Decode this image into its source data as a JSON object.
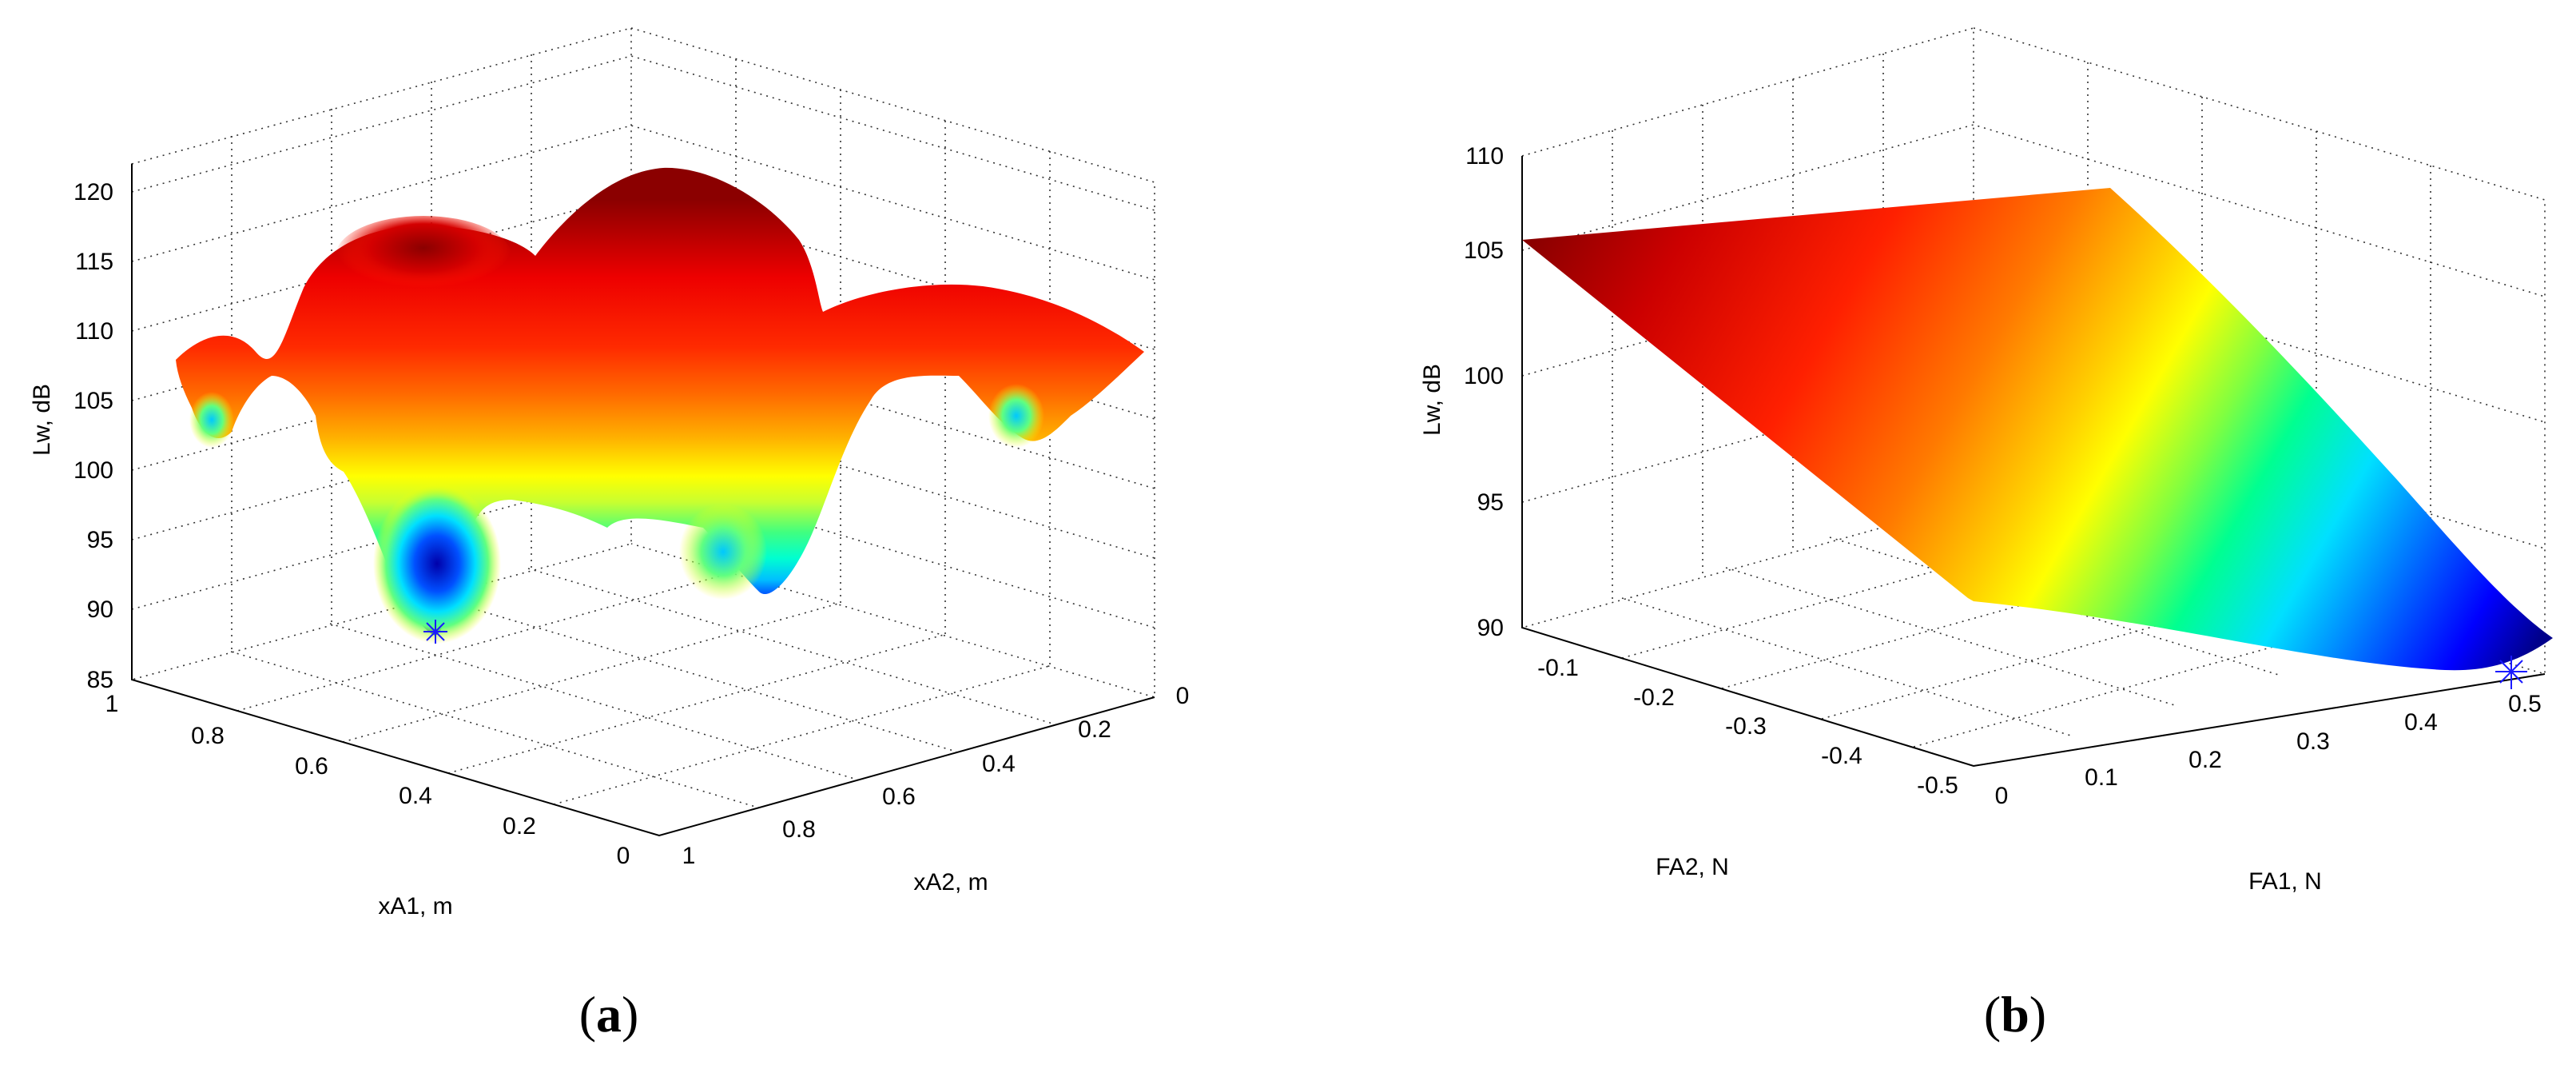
{
  "chart_data": [
    {
      "type": "surface",
      "panel_label": "a",
      "xlabel": "xA1, m",
      "ylabel": "xA2, m",
      "zlabel": "Lw, dB",
      "xlim": [
        0,
        1
      ],
      "ylim": [
        0,
        1
      ],
      "zlim": [
        85,
        120
      ],
      "x_ticks": [
        "0",
        "0.2",
        "0.4",
        "0.6",
        "0.8",
        "1"
      ],
      "y_ticks": [
        "0",
        "0.2",
        "0.4",
        "0.6",
        "0.8",
        "1"
      ],
      "z_ticks": [
        "85",
        "90",
        "95",
        "100",
        "105",
        "110",
        "115",
        "120"
      ],
      "grid": true,
      "colormap": "jet",
      "marker": {
        "symbol": "asterisk",
        "x": 0.5,
        "y": 0.75,
        "z": 88
      },
      "surface_points": {
        "x": [
          0,
          0.25,
          0.5,
          0.75,
          1
        ],
        "y": [
          0,
          0.25,
          0.5,
          0.75,
          1
        ],
        "z": [
          [
            108,
            110,
            107,
            112,
            106
          ],
          [
            103,
            116,
            104,
            110,
            102
          ],
          [
            110,
            108,
            100,
            115,
            107
          ],
          [
            102,
            104,
            88,
            112,
            103
          ],
          [
            107,
            101,
            99,
            111,
            107
          ]
        ]
      }
    },
    {
      "type": "surface",
      "panel_label": "b",
      "xlabel": "FA1, N",
      "ylabel": "FA2, N",
      "zlabel": "Lw, dB",
      "xlim": [
        0,
        0.55
      ],
      "ylim": [
        -0.55,
        -0.05
      ],
      "zlim": [
        90,
        110
      ],
      "x_ticks": [
        "0",
        "0.1",
        "0.2",
        "0.3",
        "0.4",
        "0.5"
      ],
      "y_ticks": [
        "-0.1",
        "-0.2",
        "-0.3",
        "-0.4",
        "-0.5"
      ],
      "z_ticks": [
        "90",
        "95",
        "100",
        "105",
        "110"
      ],
      "grid": true,
      "colormap": "jet",
      "marker": {
        "symbol": "asterisk",
        "x": 0.5,
        "y": -0.1,
        "z": 90
      },
      "surface_points": {
        "corners": [
          {
            "x": 0,
            "y": -0.05,
            "z": 107
          },
          {
            "x": 0,
            "y": -0.55,
            "z": 109
          },
          {
            "x": 0.55,
            "y": -0.55,
            "z": 95
          },
          {
            "x": 0.55,
            "y": -0.05,
            "z": 90
          }
        ]
      }
    }
  ]
}
